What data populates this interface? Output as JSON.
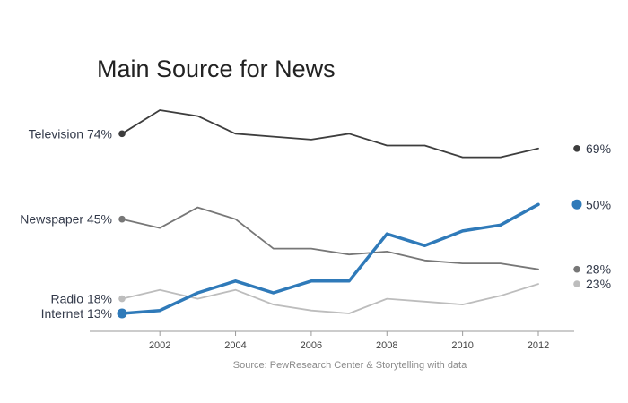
{
  "chart_data": {
    "type": "line",
    "title": "Main Source for News",
    "source": "Source: PewResearch Center & Storytelling with data",
    "x": [
      2001,
      2002,
      2003,
      2004,
      2005,
      2006,
      2007,
      2008,
      2009,
      2010,
      2011,
      2012
    ],
    "xticks": [
      "2002",
      "2004",
      "2006",
      "2008",
      "2010",
      "2012"
    ],
    "ylim": [
      5,
      84
    ],
    "grid": false,
    "legend": "none",
    "series": [
      {
        "name": "Television",
        "start_label": "Television 74%",
        "end_label": "69%",
        "end_value": 69,
        "color": "#3d3d3d",
        "values": [
          74,
          82,
          80,
          74,
          73,
          72,
          74,
          70,
          70,
          66,
          66,
          69
        ]
      },
      {
        "name": "Newspaper",
        "start_label": "Newspaper 45%",
        "end_label": "28%",
        "end_value": 28,
        "color": "#777777",
        "values": [
          45,
          42,
          49,
          45,
          35,
          35,
          33,
          34,
          31,
          30,
          30,
          28
        ]
      },
      {
        "name": "Radio",
        "start_label": "Radio 18%",
        "end_label": "23%",
        "end_value": 23,
        "color": "#bdbdbd",
        "values": [
          18,
          21,
          18,
          21,
          16,
          14,
          13,
          18,
          17,
          16,
          19,
          23
        ]
      },
      {
        "name": "Internet",
        "start_label": "Internet 13%",
        "end_label": "50%",
        "end_value": 50,
        "color": "#2f7ab9",
        "values": [
          13,
          14,
          20,
          24,
          20,
          24,
          24,
          40,
          36,
          41,
          43,
          50
        ]
      }
    ]
  }
}
